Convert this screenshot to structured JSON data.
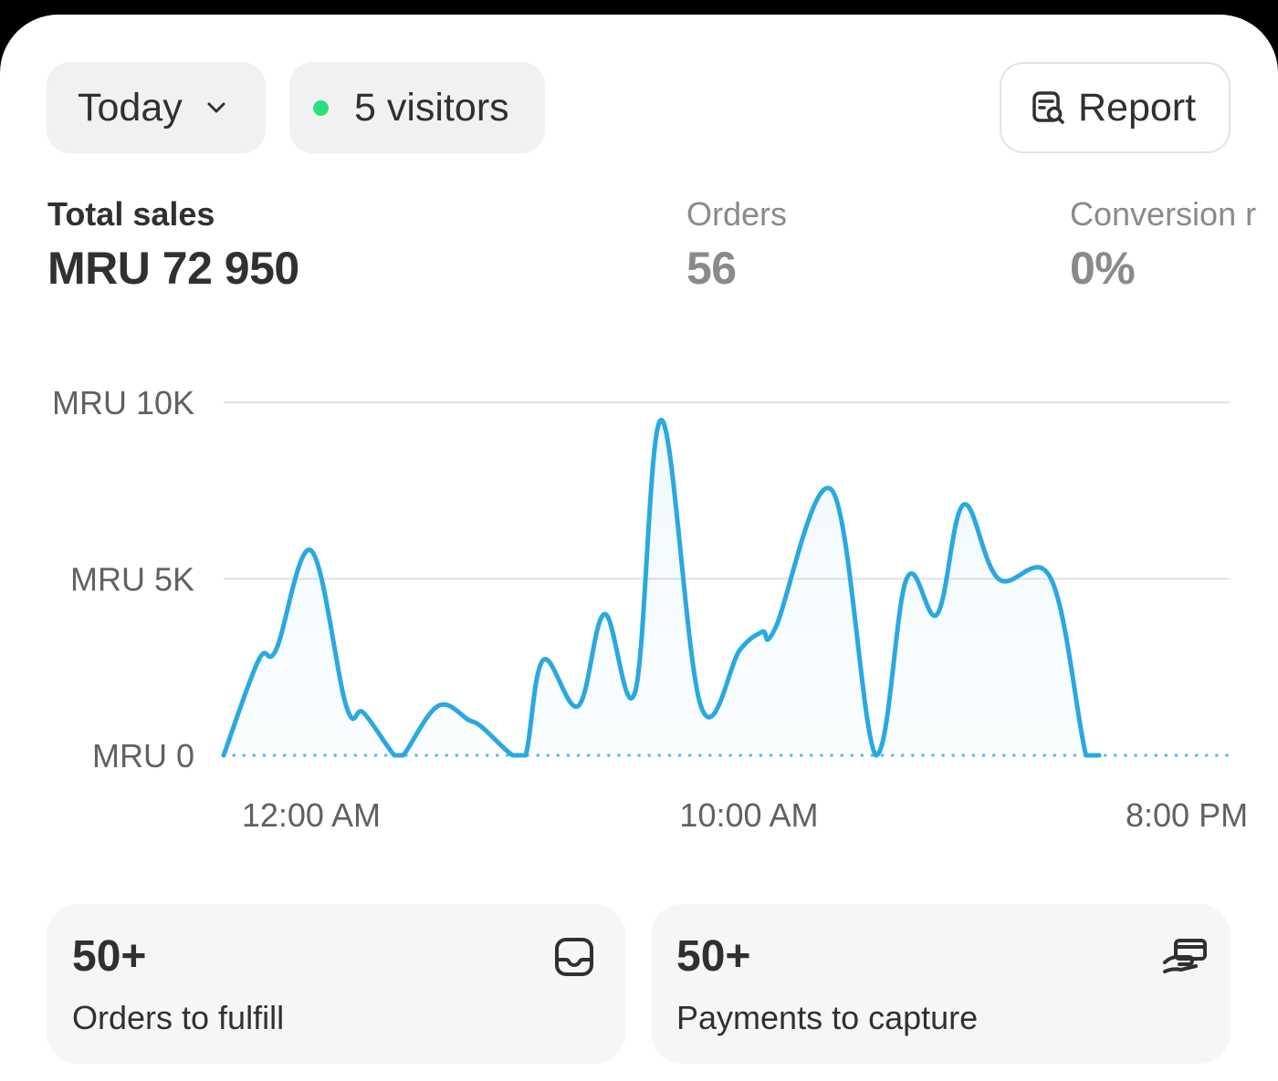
{
  "filters": {
    "date_label": "Today",
    "visitors_label": "5 visitors",
    "report_label": "Report"
  },
  "metrics": [
    {
      "label": "Total sales",
      "value": "MRU 72 950"
    },
    {
      "label": "Orders",
      "value": "56"
    },
    {
      "label": "Conversion r",
      "value": "0%"
    }
  ],
  "colors": {
    "line": "#2aa8e0",
    "live_dot": "#29e07f"
  },
  "chart_data": {
    "type": "area",
    "ylim": [
      0,
      10000
    ],
    "y_ticks": [
      {
        "value": 0,
        "label": "MRU 0"
      },
      {
        "value": 5000,
        "label": "MRU 5K"
      },
      {
        "value": 10000,
        "label": "MRU 10K"
      }
    ],
    "x_ticks": [
      {
        "value": 0,
        "label": "12:00 AM"
      },
      {
        "value": 10,
        "label": "10:00 AM"
      },
      {
        "value": 20,
        "label": "8:00 PM"
      }
    ],
    "xlim": [
      -2,
      21
    ],
    "grid": true,
    "x": [
      -2,
      -1,
      0,
      0.5,
      1,
      1.5,
      2,
      2.5,
      3,
      3.5,
      4,
      4.5,
      5,
      5.5,
      6,
      6.5,
      7,
      7.5,
      8,
      8.5,
      9,
      9.5,
      10,
      10.5,
      11,
      11.5,
      12,
      12.5,
      13,
      13.5,
      14,
      14.5,
      15,
      15.5,
      16,
      16.5,
      17,
      17.5,
      18,
      18.5,
      19,
      20,
      20.5,
      21
    ],
    "series": [
      {
        "values": [
          0,
          2700,
          5800,
          1400,
          1200,
          0,
          0,
          1400,
          1100,
          900,
          0,
          0,
          2700,
          1400,
          1500,
          4000,
          1800,
          9500,
          1400,
          2400,
          3000,
          3500,
          3600,
          7500,
          0,
          3100,
          5000,
          4000,
          4100,
          7100,
          5000,
          5000,
          0,
          0,
          0,
          0,
          0,
          0,
          0,
          0,
          0,
          0,
          0,
          0
        ]
      }
    ],
    "points": [
      [
        -2,
        0
      ],
      [
        -1.2,
        2700
      ],
      [
        -0.8,
        3000
      ],
      [
        0,
        5800
      ],
      [
        0.8,
        1400
      ],
      [
        1.2,
        1200
      ],
      [
        1.9,
        0
      ],
      [
        2.1,
        0
      ],
      [
        2.9,
        1400
      ],
      [
        3.6,
        1000
      ],
      [
        3.9,
        800
      ],
      [
        4.6,
        0
      ],
      [
        4.9,
        0
      ],
      [
        5.3,
        2700
      ],
      [
        6.1,
        1400
      ],
      [
        6.7,
        4000
      ],
      [
        7.4,
        1800
      ],
      [
        8.0,
        9500
      ],
      [
        8.9,
        1400
      ],
      [
        9.8,
        3000
      ],
      [
        10.3,
        3500
      ],
      [
        10.6,
        3600
      ],
      [
        11.9,
        7500
      ],
      [
        12.9,
        0
      ],
      [
        13.6,
        5000
      ],
      [
        14.3,
        4000
      ],
      [
        14.9,
        7100
      ],
      [
        15.7,
        5000
      ],
      [
        16.9,
        5000
      ],
      [
        17.7,
        0
      ],
      [
        18,
        0
      ]
    ]
  },
  "tiles": [
    {
      "value": "50+",
      "label": "Orders to fulfill"
    },
    {
      "value": "50+",
      "label": "Payments to capture"
    }
  ]
}
